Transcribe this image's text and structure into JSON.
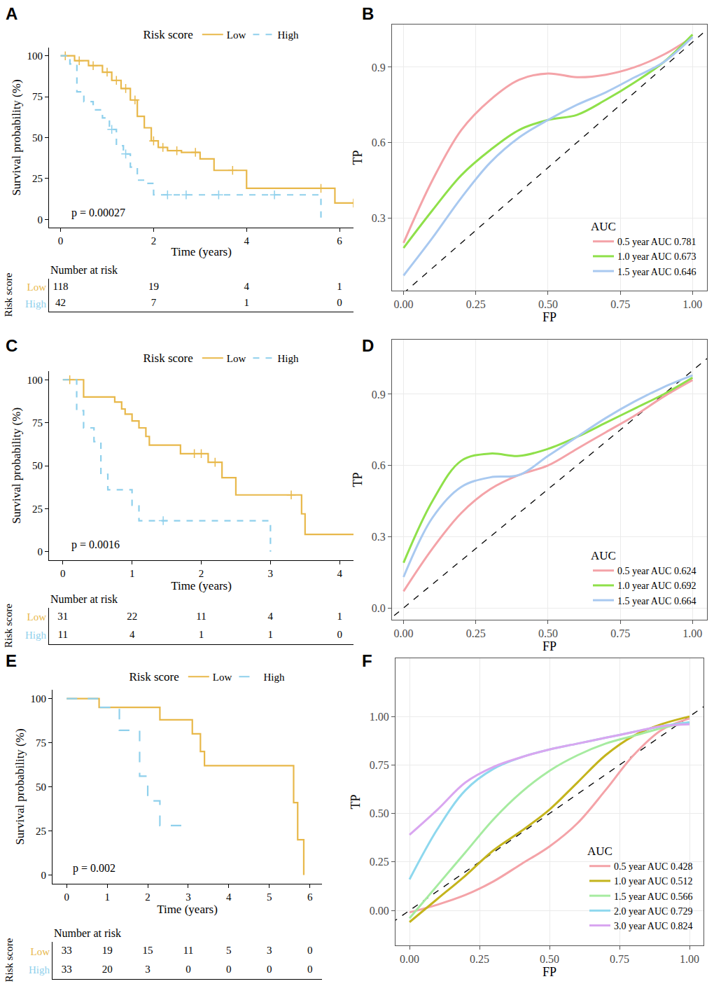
{
  "chart_data": [
    {
      "panel": "A",
      "type": "survival",
      "x_label": "Time (years)",
      "y_label": "Survival probability (%)",
      "xlim": [
        -0.25,
        6.3
      ],
      "ylim": [
        -5,
        105
      ],
      "xticks": [
        0,
        2,
        4,
        6
      ],
      "yticks": [
        0,
        25,
        50,
        75,
        100
      ],
      "grid": false,
      "legend": "top",
      "legend_title": "Risk score",
      "series": [
        {
          "name": "Low",
          "color": "#E8B84A",
          "line_style": "solid",
          "x": [
            0,
            0.3,
            0.6,
            0.9,
            1.1,
            1.3,
            1.5,
            1.65,
            1.8,
            1.95,
            2.1,
            2.3,
            2.6,
            3.0,
            3.3,
            4.0,
            5.9,
            6.3
          ],
          "values": [
            100,
            97,
            94,
            90,
            85,
            80,
            73,
            63,
            56,
            48,
            44,
            42,
            41,
            37,
            30,
            19,
            10,
            10
          ],
          "censored": {
            "x": [
              0.1,
              0.4,
              0.7,
              1.0,
              1.2,
              1.4,
              1.6,
              2.0,
              2.2,
              2.5,
              2.9,
              3.7,
              5.6,
              6.3
            ],
            "values": [
              100,
              97,
              94,
              90,
              85,
              80,
              73,
              48,
              44,
              42,
              41,
              30,
              19,
              10
            ]
          }
        },
        {
          "name": "High",
          "color": "#8FD0EC",
          "line_style": "dash",
          "x": [
            0,
            0.2,
            0.35,
            0.5,
            0.7,
            0.9,
            1.05,
            1.2,
            1.35,
            1.5,
            1.65,
            1.8,
            2.0,
            5.6
          ],
          "values": [
            100,
            95,
            78,
            72,
            67,
            62,
            55,
            45,
            40,
            32,
            24,
            22,
            15,
            0
          ],
          "censored": {
            "x": [
              1.1,
              1.4,
              2.3,
              2.7,
              3.4,
              4.6
            ],
            "values": [
              55,
              40,
              15,
              15,
              15,
              15
            ]
          }
        }
      ],
      "annotations": [
        {
          "text": "p = 0.00027"
        }
      ],
      "risk_table": {
        "title": "Number at risk",
        "label": "Risk score",
        "times": [
          0,
          2,
          4,
          6
        ],
        "rows": [
          {
            "name": "Low",
            "values": [
              118,
              19,
              4,
              1
            ]
          },
          {
            "name": "High",
            "values": [
              42,
              7,
              1,
              0
            ]
          }
        ]
      }
    },
    {
      "panel": "B",
      "type": "roc",
      "x_label": "FP",
      "y_label": "TP",
      "xlim": [
        -0.04,
        1.05
      ],
      "ylim": [
        0.01,
        1.07
      ],
      "xticks": [
        {
          "value": 0,
          "label": "0.00"
        },
        {
          "value": 0.25,
          "label": "0.25"
        },
        {
          "value": 0.5,
          "label": "0.50"
        },
        {
          "value": 0.75,
          "label": "0.75"
        },
        {
          "value": 1,
          "label": "1.00"
        }
      ],
      "yticks": [
        0.3,
        0.6,
        0.9
      ],
      "grid": true,
      "legend": "bottom right",
      "legend_title": "AUC",
      "x": [
        0,
        0.1,
        0.2,
        0.3,
        0.4,
        0.5,
        0.6,
        0.7,
        0.8,
        0.9,
        1.0
      ],
      "series": [
        {
          "name": "0.5 year AUC 0.781",
          "color": "#F4A3A8",
          "values": [
            0.2,
            0.45,
            0.65,
            0.77,
            0.85,
            0.875,
            0.86,
            0.87,
            0.9,
            0.95,
            1.02
          ]
        },
        {
          "name": "1.0 year AUC 0.673",
          "color": "#8FE04A",
          "values": [
            0.18,
            0.33,
            0.47,
            0.57,
            0.65,
            0.69,
            0.71,
            0.77,
            0.84,
            0.92,
            1.03
          ]
        },
        {
          "name": "1.5 year AUC 0.646",
          "color": "#A9C9F0",
          "values": [
            0.07,
            0.22,
            0.38,
            0.52,
            0.62,
            0.69,
            0.75,
            0.8,
            0.86,
            0.92,
            1.02
          ]
        }
      ],
      "reference": {
        "x": [
          -0.1,
          1.1
        ],
        "values": [
          -0.1,
          1.1
        ],
        "line_style": "dash"
      }
    },
    {
      "panel": "C",
      "type": "survival",
      "x_label": "Time (years)",
      "y_label": "Survival probability (%)",
      "xlim": [
        -0.2,
        4.2
      ],
      "ylim": [
        -5,
        105
      ],
      "xticks": [
        0,
        1,
        2,
        3,
        4
      ],
      "yticks": [
        0,
        25,
        50,
        75,
        100
      ],
      "grid": false,
      "legend": "top",
      "legend_title": "Risk score",
      "series": [
        {
          "name": "Low",
          "color": "#E8B84A",
          "line_style": "solid",
          "x": [
            0,
            0.3,
            0.75,
            0.85,
            0.9,
            1.0,
            1.1,
            1.2,
            1.25,
            1.7,
            2.1,
            2.3,
            2.5,
            3.45,
            3.5,
            4.2
          ],
          "values": [
            100,
            90,
            87,
            83,
            80,
            76,
            72,
            67,
            62,
            57,
            52,
            43,
            33,
            22,
            10,
            10
          ],
          "censored": {
            "x": [
              0.1,
              1.9,
              2.0,
              2.2,
              3.3
            ],
            "values": [
              100,
              57,
              57,
              52,
              33
            ]
          }
        },
        {
          "name": "High",
          "color": "#8FD0EC",
          "line_style": "dash",
          "x": [
            0,
            0.2,
            0.3,
            0.45,
            0.55,
            0.65,
            1.0,
            1.1,
            3.0
          ],
          "values": [
            100,
            82,
            72,
            64,
            45,
            36,
            27,
            18,
            0
          ],
          "censored": {
            "x": [
              1.45
            ],
            "values": [
              18
            ]
          }
        }
      ],
      "annotations": [
        {
          "text": "p = 0.0016"
        }
      ],
      "risk_table": {
        "title": "Number at risk",
        "label": "Risk score",
        "times": [
          0,
          1,
          2,
          3,
          4
        ],
        "rows": [
          {
            "name": "Low",
            "values": [
              31,
              22,
              11,
              4,
              1
            ]
          },
          {
            "name": "High",
            "values": [
              11,
              4,
              1,
              1,
              0
            ]
          }
        ]
      }
    },
    {
      "panel": "D",
      "type": "roc",
      "x_label": "FP",
      "y_label": "TP",
      "xlim": [
        -0.04,
        1.05
      ],
      "ylim": [
        -0.05,
        1.13
      ],
      "xticks": [
        {
          "value": 0,
          "label": "0.00"
        },
        {
          "value": 0.25,
          "label": "0.25"
        },
        {
          "value": 0.5,
          "label": "0.50"
        },
        {
          "value": 0.75,
          "label": "0.75"
        },
        {
          "value": 1,
          "label": "1.00"
        }
      ],
      "yticks": [
        {
          "value": 0,
          "label": "0.0"
        },
        0.3,
        0.6,
        0.9
      ],
      "grid": true,
      "legend": "bottom right",
      "legend_title": "AUC",
      "x": [
        0,
        0.1,
        0.2,
        0.3,
        0.4,
        0.5,
        0.6,
        0.7,
        0.8,
        0.9,
        1.0
      ],
      "series": [
        {
          "name": "0.5 year AUC 0.624",
          "color": "#F4A3A8",
          "values": [
            0.07,
            0.25,
            0.4,
            0.5,
            0.56,
            0.6,
            0.67,
            0.74,
            0.81,
            0.89,
            0.96
          ]
        },
        {
          "name": "1.0 year AUC 0.692",
          "color": "#8FE04A",
          "values": [
            0.19,
            0.45,
            0.62,
            0.65,
            0.64,
            0.67,
            0.72,
            0.78,
            0.84,
            0.9,
            0.97
          ]
        },
        {
          "name": "1.5 year AUC 0.664",
          "color": "#A9C9F0",
          "values": [
            0.13,
            0.38,
            0.51,
            0.55,
            0.56,
            0.64,
            0.72,
            0.8,
            0.87,
            0.93,
            0.98
          ]
        }
      ],
      "reference": {
        "x": [
          -0.1,
          1.1
        ],
        "values": [
          -0.1,
          1.1
        ],
        "line_style": "dash"
      }
    },
    {
      "panel": "E",
      "type": "survival",
      "x_label": "Time (years)",
      "y_label": "Survival probability (%)",
      "xlim": [
        -0.35,
        6.3
      ],
      "ylim": [
        -5,
        105
      ],
      "xticks": [
        0,
        1,
        2,
        3,
        4,
        5,
        6
      ],
      "yticks": [
        0,
        25,
        50,
        75,
        100
      ],
      "grid": false,
      "legend": "top",
      "legend_title": "Risk score",
      "series": [
        {
          "name": "Low",
          "color": "#E8B84A",
          "line_style": "solid",
          "x": [
            0,
            0.8,
            2.3,
            3.1,
            3.3,
            3.4,
            5.6,
            5.7,
            5.85
          ],
          "values": [
            100,
            95,
            88,
            80,
            70,
            62,
            41,
            20,
            0
          ]
        },
        {
          "name": "High",
          "color": "#8FD0EC",
          "line_style": "longdash",
          "x": [
            0,
            0.8,
            1.3,
            1.8,
            2.0,
            2.3,
            2.9
          ],
          "values": [
            100,
            95,
            82,
            56,
            42,
            28,
            28
          ]
        }
      ],
      "annotations": [
        {
          "text": "p = 0.002"
        }
      ],
      "risk_table": {
        "title": "Number at risk",
        "label": "Risk score",
        "times": [
          0,
          1,
          2,
          3,
          4,
          5,
          6
        ],
        "rows": [
          {
            "name": "Low",
            "values": [
              33,
              19,
              15,
              11,
              5,
              3,
              0
            ]
          },
          {
            "name": "High",
            "values": [
              33,
              20,
              3,
              0,
              0,
              0,
              0
            ]
          }
        ]
      }
    },
    {
      "panel": "F",
      "type": "roc",
      "x_label": "FP",
      "y_label": "TP",
      "xlim": [
        -0.05,
        1.05
      ],
      "ylim": [
        -0.18,
        1.3
      ],
      "xticks": [
        {
          "value": 0,
          "label": "0.00"
        },
        {
          "value": 0.25,
          "label": "0.25"
        },
        {
          "value": 0.5,
          "label": "0.50"
        },
        {
          "value": 0.75,
          "label": "0.75"
        },
        {
          "value": 1,
          "label": "1.00"
        }
      ],
      "yticks": [
        {
          "value": 0,
          "label": "0.00"
        },
        {
          "value": 0.25,
          "label": "0.25"
        },
        {
          "value": 0.5,
          "label": "0.50"
        },
        {
          "value": 0.75,
          "label": "0.75"
        },
        {
          "value": 1,
          "label": "1.00"
        }
      ],
      "grid": true,
      "legend": "bottom right",
      "legend_title": "AUC",
      "x": [
        0,
        0.1,
        0.2,
        0.3,
        0.4,
        0.5,
        0.6,
        0.7,
        0.8,
        0.9,
        1.0
      ],
      "series": [
        {
          "name": "0.5 year AUC 0.428",
          "color": "#F4A3A8",
          "values": [
            -0.01,
            0.03,
            0.08,
            0.15,
            0.24,
            0.33,
            0.45,
            0.62,
            0.8,
            0.93,
            0.99
          ]
        },
        {
          "name": "1.0 year AUC 0.512",
          "color": "#C4B41C",
          "values": [
            -0.06,
            0.06,
            0.18,
            0.31,
            0.41,
            0.52,
            0.66,
            0.8,
            0.9,
            0.96,
            1.0
          ]
        },
        {
          "name": "1.5 year AUC 0.566",
          "color": "#A6EBA0",
          "values": [
            -0.04,
            0.13,
            0.3,
            0.47,
            0.61,
            0.72,
            0.8,
            0.86,
            0.9,
            0.94,
            0.97
          ]
        },
        {
          "name": "2.0 year AUC 0.729",
          "color": "#8ED8EE",
          "values": [
            0.16,
            0.42,
            0.62,
            0.73,
            0.79,
            0.83,
            0.86,
            0.89,
            0.92,
            0.95,
            0.97
          ]
        },
        {
          "name": "3.0 year AUC 0.824",
          "color": "#D9A6F0",
          "values": [
            0.39,
            0.52,
            0.66,
            0.74,
            0.79,
            0.83,
            0.86,
            0.89,
            0.92,
            0.95,
            0.96
          ]
        }
      ],
      "reference": {
        "x": [
          -0.1,
          1.1
        ],
        "values": [
          -0.1,
          1.1
        ],
        "line_style": "dash"
      }
    }
  ]
}
